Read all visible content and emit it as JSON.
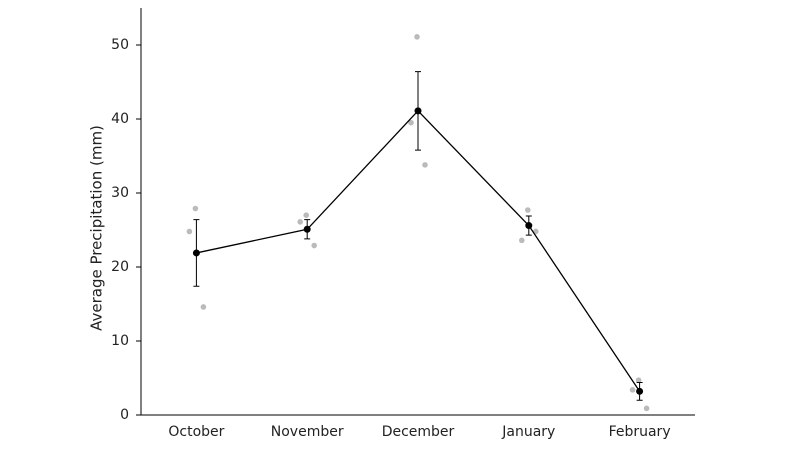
{
  "chart_data": {
    "type": "line",
    "y_label": "Average Precipitation (mm)",
    "categories": [
      "October",
      "November",
      "December",
      "January",
      "February"
    ],
    "series": [
      {
        "color": "#000000",
        "values": [
          21.9,
          25.1,
          41.1,
          25.6,
          3.2
        ],
        "errors": [
          4.5,
          1.3,
          5.3,
          1.3,
          1.2
        ]
      }
    ],
    "observations": {
      "color": "#bbbbbb",
      "values": [
        [
          27.9,
          24.8,
          14.6
        ],
        [
          27.0,
          26.1,
          22.9
        ],
        [
          51.1,
          39.5,
          33.8
        ],
        [
          27.7,
          23.6,
          24.8
        ],
        [
          4.7,
          3.4,
          0.9
        ]
      ]
    },
    "ylim": [
      0,
      55
    ],
    "yticks": [
      0,
      10,
      20,
      30,
      40,
      50
    ],
    "grid": false
  }
}
